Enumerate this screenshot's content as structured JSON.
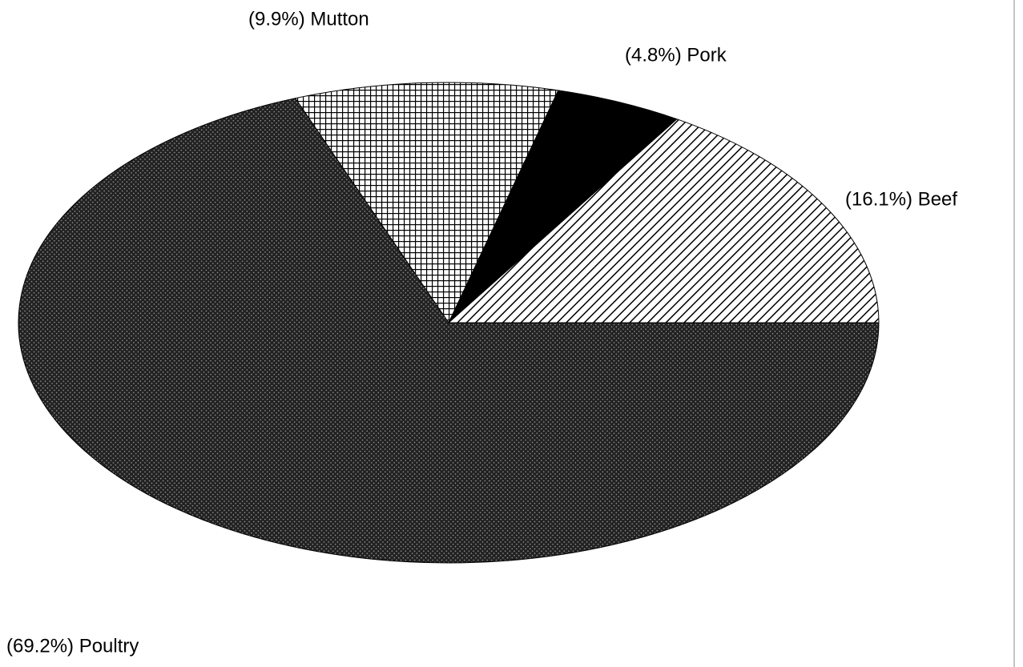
{
  "chart_data": {
    "type": "pie",
    "categories": [
      "Beef",
      "Pork",
      "Mutton",
      "Poultry"
    ],
    "values": [
      16.1,
      4.8,
      9.9,
      69.2
    ],
    "value_labels": [
      "(16.1%) Beef",
      "(4.8%) Pork",
      "(9.9%) Mutton",
      "(69.2%) Poultry"
    ]
  }
}
